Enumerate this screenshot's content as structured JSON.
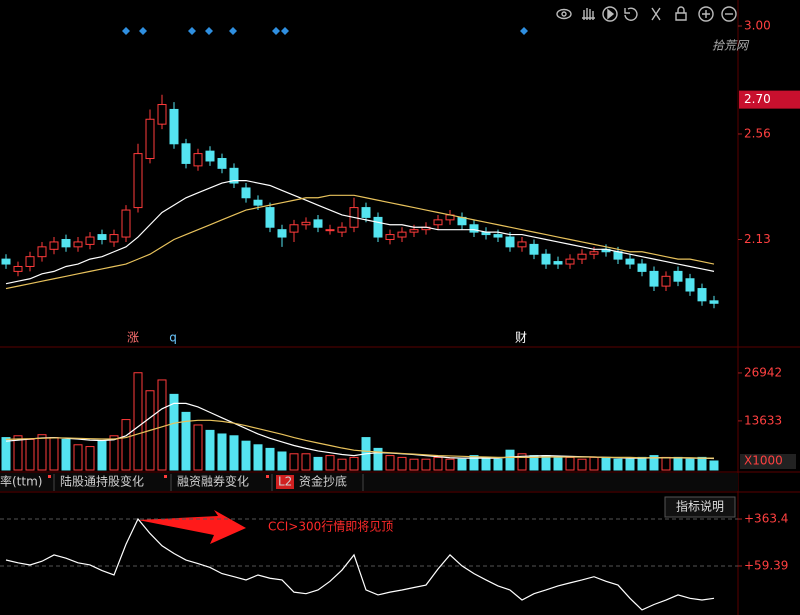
{
  "watermark": "拾荒网",
  "tabs": [
    "率(ttm)",
    "陆股通持股变化",
    "融资融券变化",
    "L2",
    "资金抄底"
  ],
  "button": "指标说明",
  "chart_data": [
    {
      "type": "candlestick",
      "open": [
        2.05,
        2.0,
        2.02,
        2.06,
        2.09,
        2.13,
        2.1,
        2.11,
        2.15,
        2.12,
        2.14,
        2.26,
        2.46,
        2.6,
        2.66,
        2.52,
        2.43,
        2.49,
        2.46,
        2.42,
        2.34,
        2.29,
        2.26,
        2.17,
        2.16,
        2.19,
        2.21,
        2.17,
        2.16,
        2.18,
        2.26,
        2.22,
        2.13,
        2.14,
        2.16,
        2.17,
        2.19,
        2.21,
        2.22,
        2.19,
        2.16,
        2.15,
        2.14,
        2.1,
        2.11,
        2.07,
        2.04,
        2.03,
        2.05,
        2.07,
        2.09,
        2.08,
        2.05,
        2.03,
        2.0,
        1.94,
        2.0,
        1.97,
        1.93,
        1.88
      ],
      "high": [
        2.07,
        2.04,
        2.08,
        2.12,
        2.14,
        2.15,
        2.14,
        2.16,
        2.17,
        2.17,
        2.27,
        2.52,
        2.66,
        2.72,
        2.69,
        2.54,
        2.5,
        2.51,
        2.48,
        2.44,
        2.36,
        2.31,
        2.28,
        2.19,
        2.21,
        2.22,
        2.23,
        2.19,
        2.2,
        2.3,
        2.28,
        2.24,
        2.17,
        2.18,
        2.19,
        2.2,
        2.23,
        2.25,
        2.24,
        2.21,
        2.18,
        2.17,
        2.16,
        2.14,
        2.13,
        2.09,
        2.06,
        2.07,
        2.09,
        2.1,
        2.11,
        2.1,
        2.07,
        2.05,
        2.02,
        2.0,
        2.02,
        1.99,
        1.95,
        1.9
      ],
      "low": [
        2.01,
        1.98,
        2.0,
        2.04,
        2.07,
        2.08,
        2.08,
        2.09,
        2.11,
        2.1,
        2.12,
        2.24,
        2.44,
        2.58,
        2.5,
        2.42,
        2.41,
        2.43,
        2.4,
        2.34,
        2.28,
        2.25,
        2.16,
        2.1,
        2.12,
        2.17,
        2.16,
        2.15,
        2.14,
        2.16,
        2.2,
        2.12,
        2.11,
        2.12,
        2.14,
        2.15,
        2.17,
        2.19,
        2.17,
        2.14,
        2.13,
        2.12,
        2.08,
        2.08,
        2.05,
        2.01,
        2.01,
        2.01,
        2.03,
        2.05,
        2.06,
        2.03,
        2.01,
        1.98,
        1.92,
        1.92,
        1.94,
        1.9,
        1.86,
        1.85
      ],
      "close": [
        2.03,
        2.02,
        2.06,
        2.1,
        2.12,
        2.1,
        2.12,
        2.14,
        2.13,
        2.15,
        2.25,
        2.48,
        2.62,
        2.68,
        2.52,
        2.44,
        2.48,
        2.45,
        2.42,
        2.36,
        2.3,
        2.27,
        2.18,
        2.14,
        2.19,
        2.2,
        2.18,
        2.17,
        2.18,
        2.26,
        2.22,
        2.14,
        2.15,
        2.16,
        2.17,
        2.18,
        2.21,
        2.23,
        2.19,
        2.16,
        2.15,
        2.14,
        2.1,
        2.12,
        2.07,
        2.03,
        2.03,
        2.05,
        2.07,
        2.08,
        2.08,
        2.05,
        2.03,
        2.0,
        1.94,
        1.98,
        1.96,
        1.92,
        1.88,
        1.87
      ],
      "up_color": "#ff3b3b",
      "down_color": "#54e4f0",
      "series": [
        {
          "color": "#ffffff",
          "values": [
            1.95,
            1.96,
            1.97,
            1.99,
            2.0,
            2.02,
            2.03,
            2.05,
            2.06,
            2.08,
            2.1,
            2.14,
            2.19,
            2.24,
            2.27,
            2.3,
            2.32,
            2.34,
            2.36,
            2.37,
            2.37,
            2.36,
            2.35,
            2.33,
            2.31,
            2.29,
            2.27,
            2.25,
            2.23,
            2.22,
            2.21,
            2.2,
            2.19,
            2.19,
            2.18,
            2.18,
            2.17,
            2.17,
            2.17,
            2.17,
            2.16,
            2.16,
            2.15,
            2.15,
            2.14,
            2.13,
            2.12,
            2.11,
            2.1,
            2.09,
            2.09,
            2.08,
            2.07,
            2.06,
            2.05,
            2.04,
            2.03,
            2.02,
            2.01,
            2.0
          ]
        },
        {
          "color": "#e8c25c",
          "values": [
            1.93,
            1.94,
            1.95,
            1.96,
            1.97,
            1.98,
            1.99,
            2.0,
            2.01,
            2.02,
            2.03,
            2.05,
            2.07,
            2.1,
            2.13,
            2.15,
            2.17,
            2.19,
            2.21,
            2.23,
            2.25,
            2.26,
            2.27,
            2.28,
            2.29,
            2.3,
            2.3,
            2.31,
            2.31,
            2.31,
            2.3,
            2.29,
            2.28,
            2.27,
            2.26,
            2.25,
            2.24,
            2.23,
            2.22,
            2.21,
            2.2,
            2.19,
            2.18,
            2.17,
            2.16,
            2.15,
            2.14,
            2.13,
            2.12,
            2.11,
            2.1,
            2.09,
            2.08,
            2.08,
            2.07,
            2.06,
            2.05,
            2.05,
            2.04,
            2.03
          ]
        }
      ],
      "ylim": [
        1.7,
        3.106
      ],
      "yticks": [
        {
          "value": 3,
          "label": "3.00"
        },
        2.56,
        2.13
      ],
      "highlight_tick": {
        "value": 2.7,
        "label": "2.70"
      },
      "annotations": [
        "涨",
        "q",
        "财"
      ]
    },
    {
      "type": "volume",
      "values": [
        9000,
        9500,
        8500,
        9800,
        9000,
        8500,
        7000,
        6500,
        8000,
        9500,
        14000,
        27000,
        22000,
        25000,
        21000,
        16000,
        12500,
        11000,
        10000,
        9500,
        8000,
        7000,
        6000,
        5000,
        4500,
        4500,
        3500,
        4000,
        3000,
        3500,
        9000,
        6000,
        4000,
        3500,
        3000,
        3000,
        3500,
        3000,
        3000,
        4000,
        3500,
        3000,
        5500,
        4500,
        4000,
        4000,
        3500,
        3500,
        3000,
        3500,
        3500,
        3000,
        3000,
        3500,
        4000,
        3500,
        3500,
        3000,
        3500,
        2500
      ],
      "series": [
        {
          "color": "#ffffff",
          "values": [
            8000,
            8300,
            8600,
            8900,
            9000,
            8800,
            8600,
            8300,
            8200,
            8400,
            9500,
            12000,
            14500,
            17000,
            18500,
            18500,
            17500,
            16000,
            14500,
            13000,
            11500,
            10000,
            8800,
            7800,
            6800,
            6000,
            5300,
            4800,
            4300,
            4000,
            4500,
            4800,
            4700,
            4500,
            4300,
            4000,
            3700,
            3400,
            3300,
            3300,
            3300,
            3300,
            3600,
            3800,
            3900,
            4000,
            3900,
            3800,
            3700,
            3600,
            3500,
            3400,
            3300,
            3300,
            3400,
            3400,
            3400,
            3300,
            3300,
            3200
          ]
        },
        {
          "color": "#e8c25c",
          "values": [
            8500,
            8600,
            8700,
            8800,
            8900,
            8900,
            8800,
            8700,
            8600,
            8600,
            9000,
            10000,
            11000,
            12000,
            13000,
            13500,
            13800,
            13800,
            13500,
            13000,
            12300,
            11500,
            10700,
            9900,
            9000,
            8200,
            7500,
            6800,
            6100,
            5500,
            5200,
            5000,
            4800,
            4600,
            4400,
            4200,
            4000,
            3900,
            3800,
            3700,
            3600,
            3500,
            3500,
            3500,
            3500,
            3600,
            3600,
            3600,
            3600,
            3600,
            3500,
            3500,
            3500,
            3400,
            3400,
            3400,
            3400,
            3400,
            3300,
            3300
          ]
        }
      ],
      "ylim": [
        0,
        33870
      ],
      "yticks": [
        26942,
        13633
      ],
      "unit": "X1000"
    },
    {
      "type": "line",
      "series": [
        {
          "color": "#ffffff",
          "values": [
            98,
            80,
            66,
            90,
            131,
            110,
            80,
            66,
            30,
            1,
            200,
            363.4,
            270,
            190,
            140,
            98,
            75,
            50,
            10,
            -10,
            -31,
            1,
            -20,
            -31,
            -110,
            -120,
            -96,
            -40,
            33,
            131,
            -96,
            -128,
            -110,
            -96,
            -80,
            -64,
            40,
            131,
            60,
            10,
            -31,
            -70,
            -96,
            -161,
            -120,
            -96,
            -70,
            -50,
            -31,
            -10,
            -40,
            -64,
            -150,
            -225,
            -190,
            -161,
            -128,
            -150,
            -161,
            -150
          ]
        }
      ],
      "ylim": [
        -258,
        506
      ],
      "yticks": [
        {
          "value": 363.4,
          "label": "+363.4"
        },
        {
          "value": 59.39,
          "label": "+59.39"
        }
      ],
      "grid": true,
      "annotation": "CCI>300行情即将见顶"
    }
  ]
}
